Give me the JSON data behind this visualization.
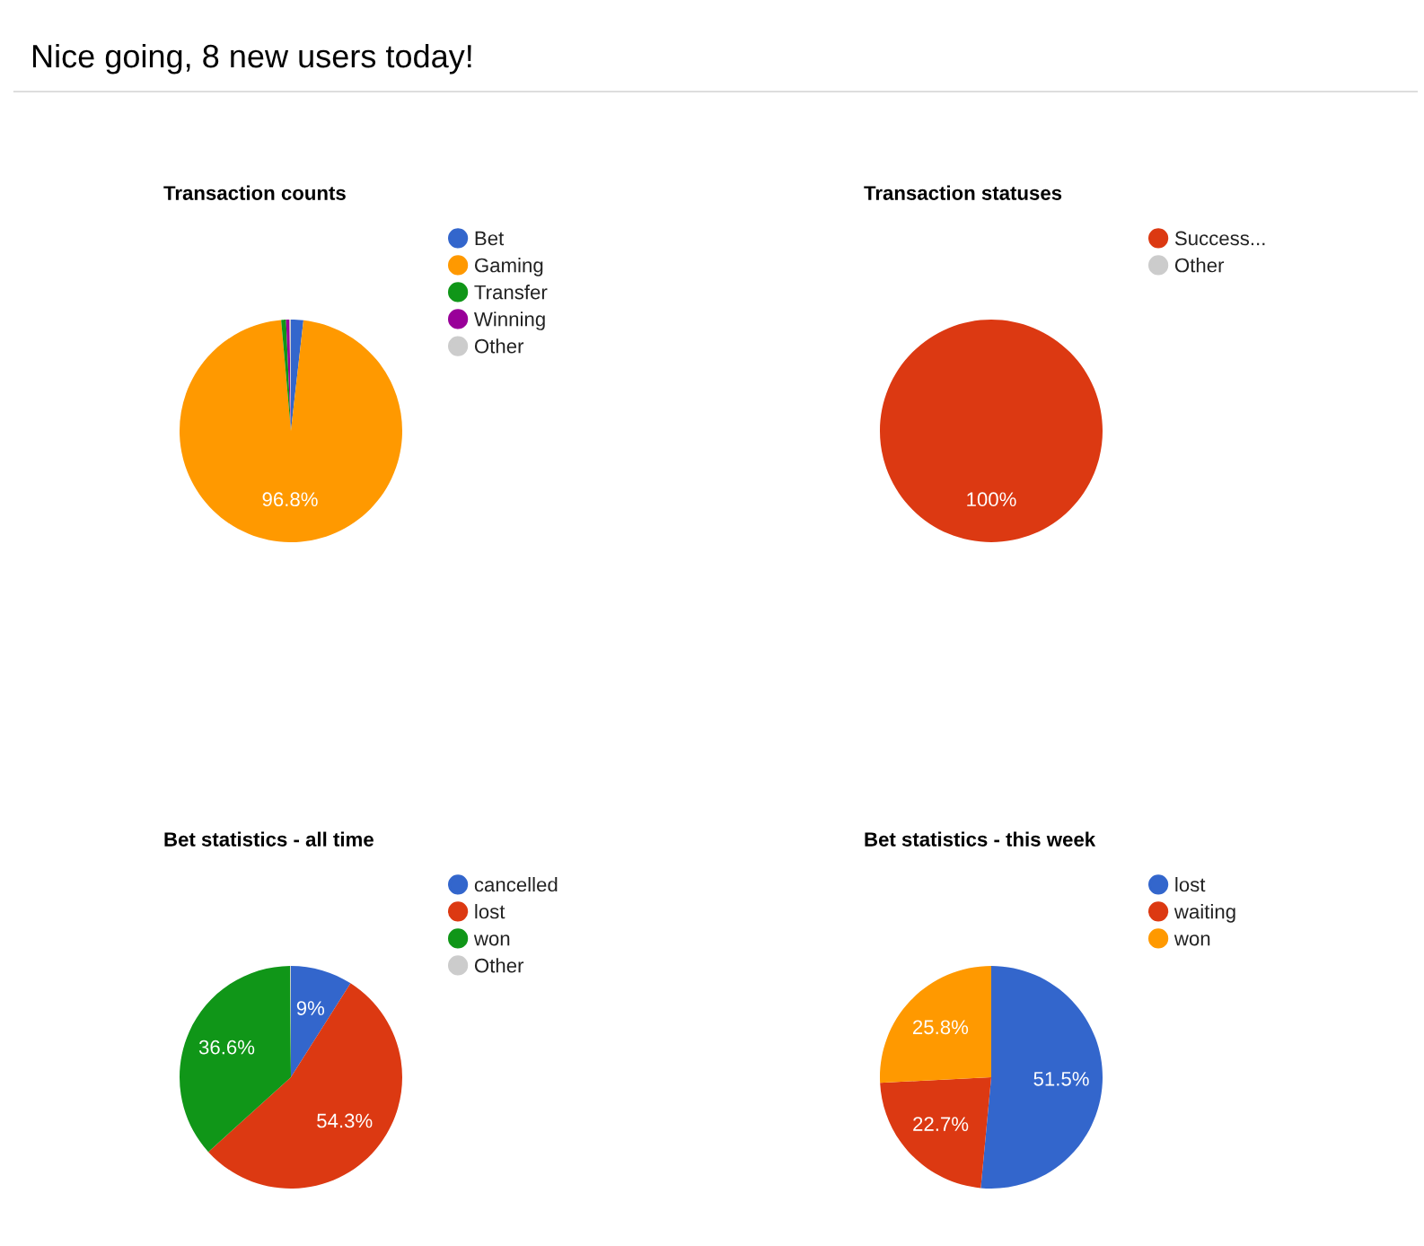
{
  "chart_data": [
    {
      "type": "other",
      "title": "Nice going, 8 new users today!"
    },
    {
      "type": "pie",
      "title": "Transaction counts",
      "categories": [
        "Bet",
        "Gaming",
        "Transfer",
        "Winning",
        "Other"
      ],
      "values": [
        1.8,
        96.8,
        0.7,
        0.5,
        0.2
      ],
      "colors": [
        "#3366cc",
        "#ff9900",
        "#109618",
        "#990099",
        "#cccccc"
      ],
      "value_labels": [
        null,
        "96.8%",
        null,
        null,
        null
      ],
      "legend": "right"
    },
    {
      "type": "pie",
      "title": "Transaction statuses",
      "categories": [
        "Success...",
        "Other"
      ],
      "values": [
        100,
        0
      ],
      "colors": [
        "#dc3912",
        "#cccccc"
      ],
      "value_labels": [
        "100%",
        null
      ],
      "legend": "right"
    },
    {
      "type": "pie",
      "title": "Bet statistics - all time",
      "categories": [
        "cancelled",
        "lost",
        "won",
        "Other"
      ],
      "values": [
        9,
        54.3,
        36.6,
        0.1
      ],
      "colors": [
        "#3366cc",
        "#dc3912",
        "#109618",
        "#cccccc"
      ],
      "value_labels": [
        "9%",
        "54.3%",
        "36.6%",
        null
      ],
      "legend": "right"
    },
    {
      "type": "pie",
      "title": "Bet statistics - this week",
      "categories": [
        "lost",
        "waiting",
        "won"
      ],
      "values": [
        51.5,
        22.7,
        25.8
      ],
      "colors": [
        "#3366cc",
        "#dc3912",
        "#ff9900"
      ],
      "value_labels": [
        "51.5%",
        "22.7%",
        "25.8%"
      ],
      "legend": "right"
    }
  ]
}
